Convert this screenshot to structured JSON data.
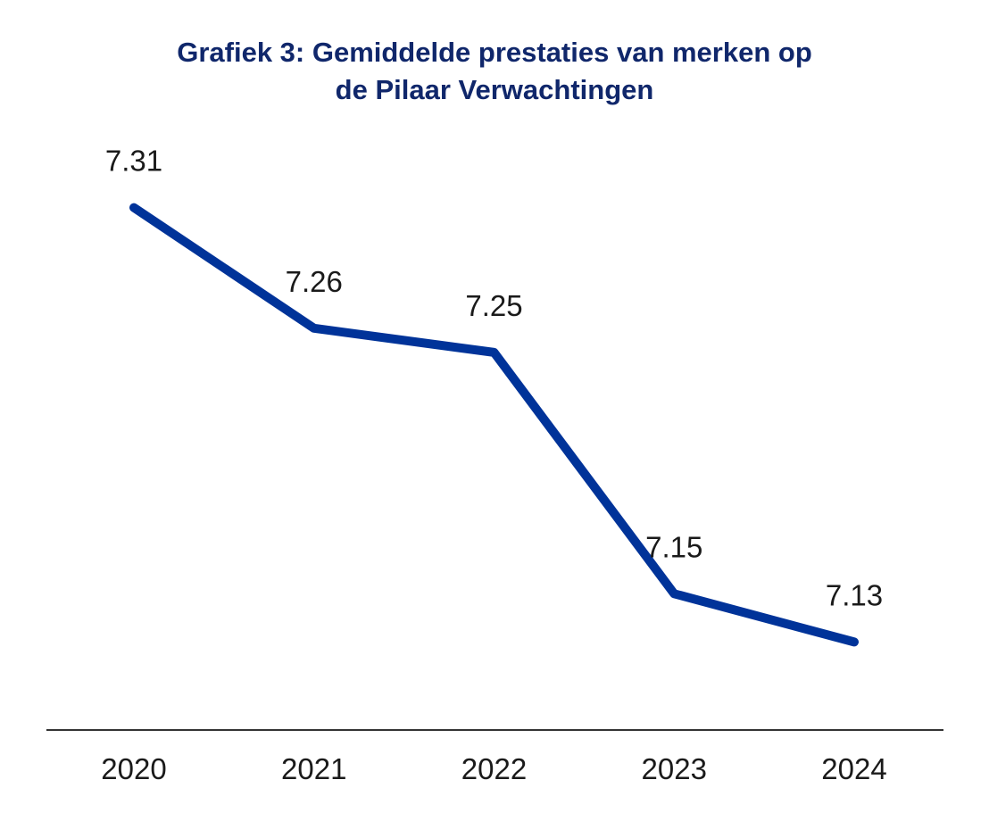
{
  "colors": {
    "line": "#003399",
    "title": "#10276b",
    "axis": "#333333",
    "text": "#1a1a1a"
  },
  "chart_data": {
    "type": "line",
    "title_lines": [
      "Grafiek 3: Gemiddelde prestaties van merken op",
      "de Pilaar Verwachtingen"
    ],
    "categories": [
      "2020",
      "2021",
      "2022",
      "2023",
      "2024"
    ],
    "series": [
      {
        "values": [
          7.31,
          7.26,
          7.25,
          7.15,
          7.13
        ],
        "labels": [
          "7.31",
          "7.26",
          "7.25",
          "7.15",
          "7.13"
        ]
      }
    ],
    "xlabel": "",
    "ylabel": "",
    "ylim": [
      7.105,
      7.335
    ],
    "grid": false,
    "legend": "none"
  }
}
